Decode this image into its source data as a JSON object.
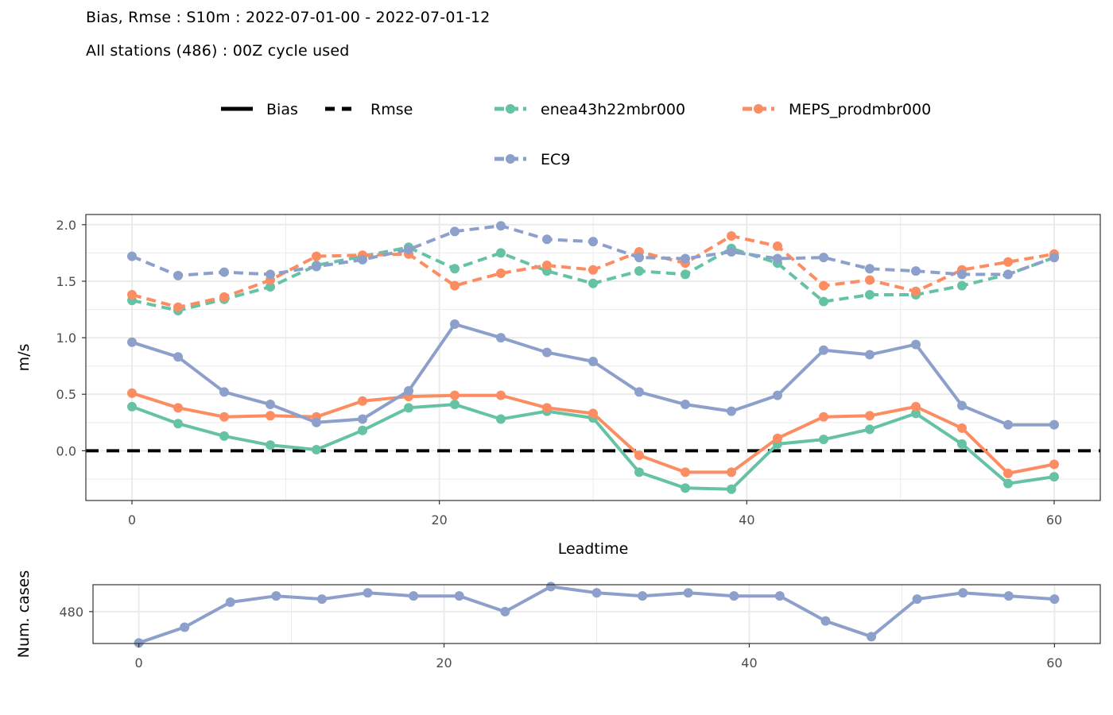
{
  "header": {
    "title": "Bias, Rmse : S10m : 2022-07-01-00 - 2022-07-01-12",
    "subtitle": "All stations (486) : 00Z cycle used"
  },
  "legend": {
    "linetypes": [
      {
        "label": "Bias",
        "dash": "solid"
      },
      {
        "label": "Rmse",
        "dash": "dashed"
      }
    ],
    "models": [
      {
        "label": "enea43h22mbr000",
        "color": "#66C2A5"
      },
      {
        "label": "MEPS_prodmbr000",
        "color": "#FC8D62"
      },
      {
        "label": "EC9",
        "color": "#8DA0CB"
      }
    ]
  },
  "chart_data": [
    {
      "type": "line",
      "xlabel": "Leadtime",
      "ylabel": "m/s",
      "xlim": [
        -3,
        63
      ],
      "ylim": [
        -0.44,
        2.09
      ],
      "x_ticks": [
        "0",
        "20",
        "40",
        "60"
      ],
      "y_ticks": [
        "0.0",
        "0.5",
        "1.0",
        "1.5",
        "2.0"
      ],
      "grid": true,
      "legend_position": "top",
      "reference_line": {
        "y": 0,
        "style": "dashed",
        "color": "#000000"
      },
      "x": [
        0,
        3,
        6,
        9,
        12,
        15,
        18,
        21,
        24,
        27,
        30,
        33,
        36,
        39,
        42,
        45,
        48,
        51,
        54,
        57,
        60
      ],
      "series": [
        {
          "name": "enea43h22mbr000",
          "score": "Bias",
          "color": "#66C2A5",
          "dash": "solid",
          "values": [
            0.39,
            0.24,
            0.13,
            0.05,
            0.01,
            0.18,
            0.38,
            0.41,
            0.28,
            0.35,
            0.29,
            -0.19,
            -0.33,
            -0.34,
            0.06,
            0.1,
            0.19,
            0.33,
            0.06,
            -0.29,
            -0.23
          ]
        },
        {
          "name": "MEPS_prodmbr000",
          "score": "Bias",
          "color": "#FC8D62",
          "dash": "solid",
          "values": [
            0.51,
            0.38,
            0.3,
            0.31,
            0.3,
            0.44,
            0.48,
            0.49,
            0.49,
            0.38,
            0.33,
            -0.04,
            -0.19,
            -0.19,
            0.11,
            0.3,
            0.31,
            0.39,
            0.2,
            -0.2,
            -0.12
          ]
        },
        {
          "name": "EC9",
          "score": "Bias",
          "color": "#8DA0CB",
          "dash": "solid",
          "values": [
            0.96,
            0.83,
            0.52,
            0.41,
            0.25,
            0.28,
            0.53,
            1.12,
            1.0,
            0.87,
            0.79,
            0.52,
            0.41,
            0.35,
            0.49,
            0.89,
            0.85,
            0.94,
            0.4,
            0.23,
            0.23
          ]
        },
        {
          "name": "enea43h22mbr000",
          "score": "Rmse",
          "color": "#66C2A5",
          "dash": "dashed",
          "values": [
            1.33,
            1.24,
            1.34,
            1.45,
            1.64,
            1.72,
            1.8,
            1.61,
            1.75,
            1.59,
            1.48,
            1.59,
            1.56,
            1.79,
            1.66,
            1.32,
            1.38,
            1.38,
            1.46,
            1.56,
            1.71
          ]
        },
        {
          "name": "MEPS_prodmbr000",
          "score": "Rmse",
          "color": "#FC8D62",
          "dash": "dashed",
          "values": [
            1.38,
            1.27,
            1.36,
            1.51,
            1.72,
            1.73,
            1.74,
            1.46,
            1.57,
            1.64,
            1.6,
            1.76,
            1.66,
            1.9,
            1.81,
            1.46,
            1.51,
            1.41,
            1.6,
            1.67,
            1.74
          ]
        },
        {
          "name": "EC9",
          "score": "Rmse",
          "color": "#8DA0CB",
          "dash": "dashed",
          "values": [
            1.72,
            1.55,
            1.58,
            1.56,
            1.63,
            1.69,
            1.78,
            1.94,
            1.99,
            1.87,
            1.85,
            1.71,
            1.7,
            1.76,
            1.7,
            1.71,
            1.61,
            1.59,
            1.56,
            1.56,
            1.71
          ]
        }
      ]
    },
    {
      "type": "line",
      "xlabel": "",
      "ylabel": "Num. cases",
      "xlim": [
        -3,
        63
      ],
      "ylim": [
        469.8,
        488.6
      ],
      "x_ticks": [
        "0",
        "20",
        "40",
        "60"
      ],
      "y_ticks": [
        "480"
      ],
      "grid": true,
      "x": [
        0,
        3,
        6,
        9,
        12,
        15,
        18,
        21,
        24,
        27,
        30,
        33,
        36,
        39,
        42,
        45,
        48,
        51,
        54,
        57,
        60
      ],
      "series": [
        {
          "name": "",
          "color": "#8DA0CB",
          "dash": "solid",
          "values": [
            470,
            475,
            483,
            485,
            484,
            486,
            485,
            485,
            480,
            488,
            486,
            485,
            486,
            485,
            485,
            477,
            472,
            484,
            486,
            485,
            484
          ]
        }
      ]
    }
  ]
}
